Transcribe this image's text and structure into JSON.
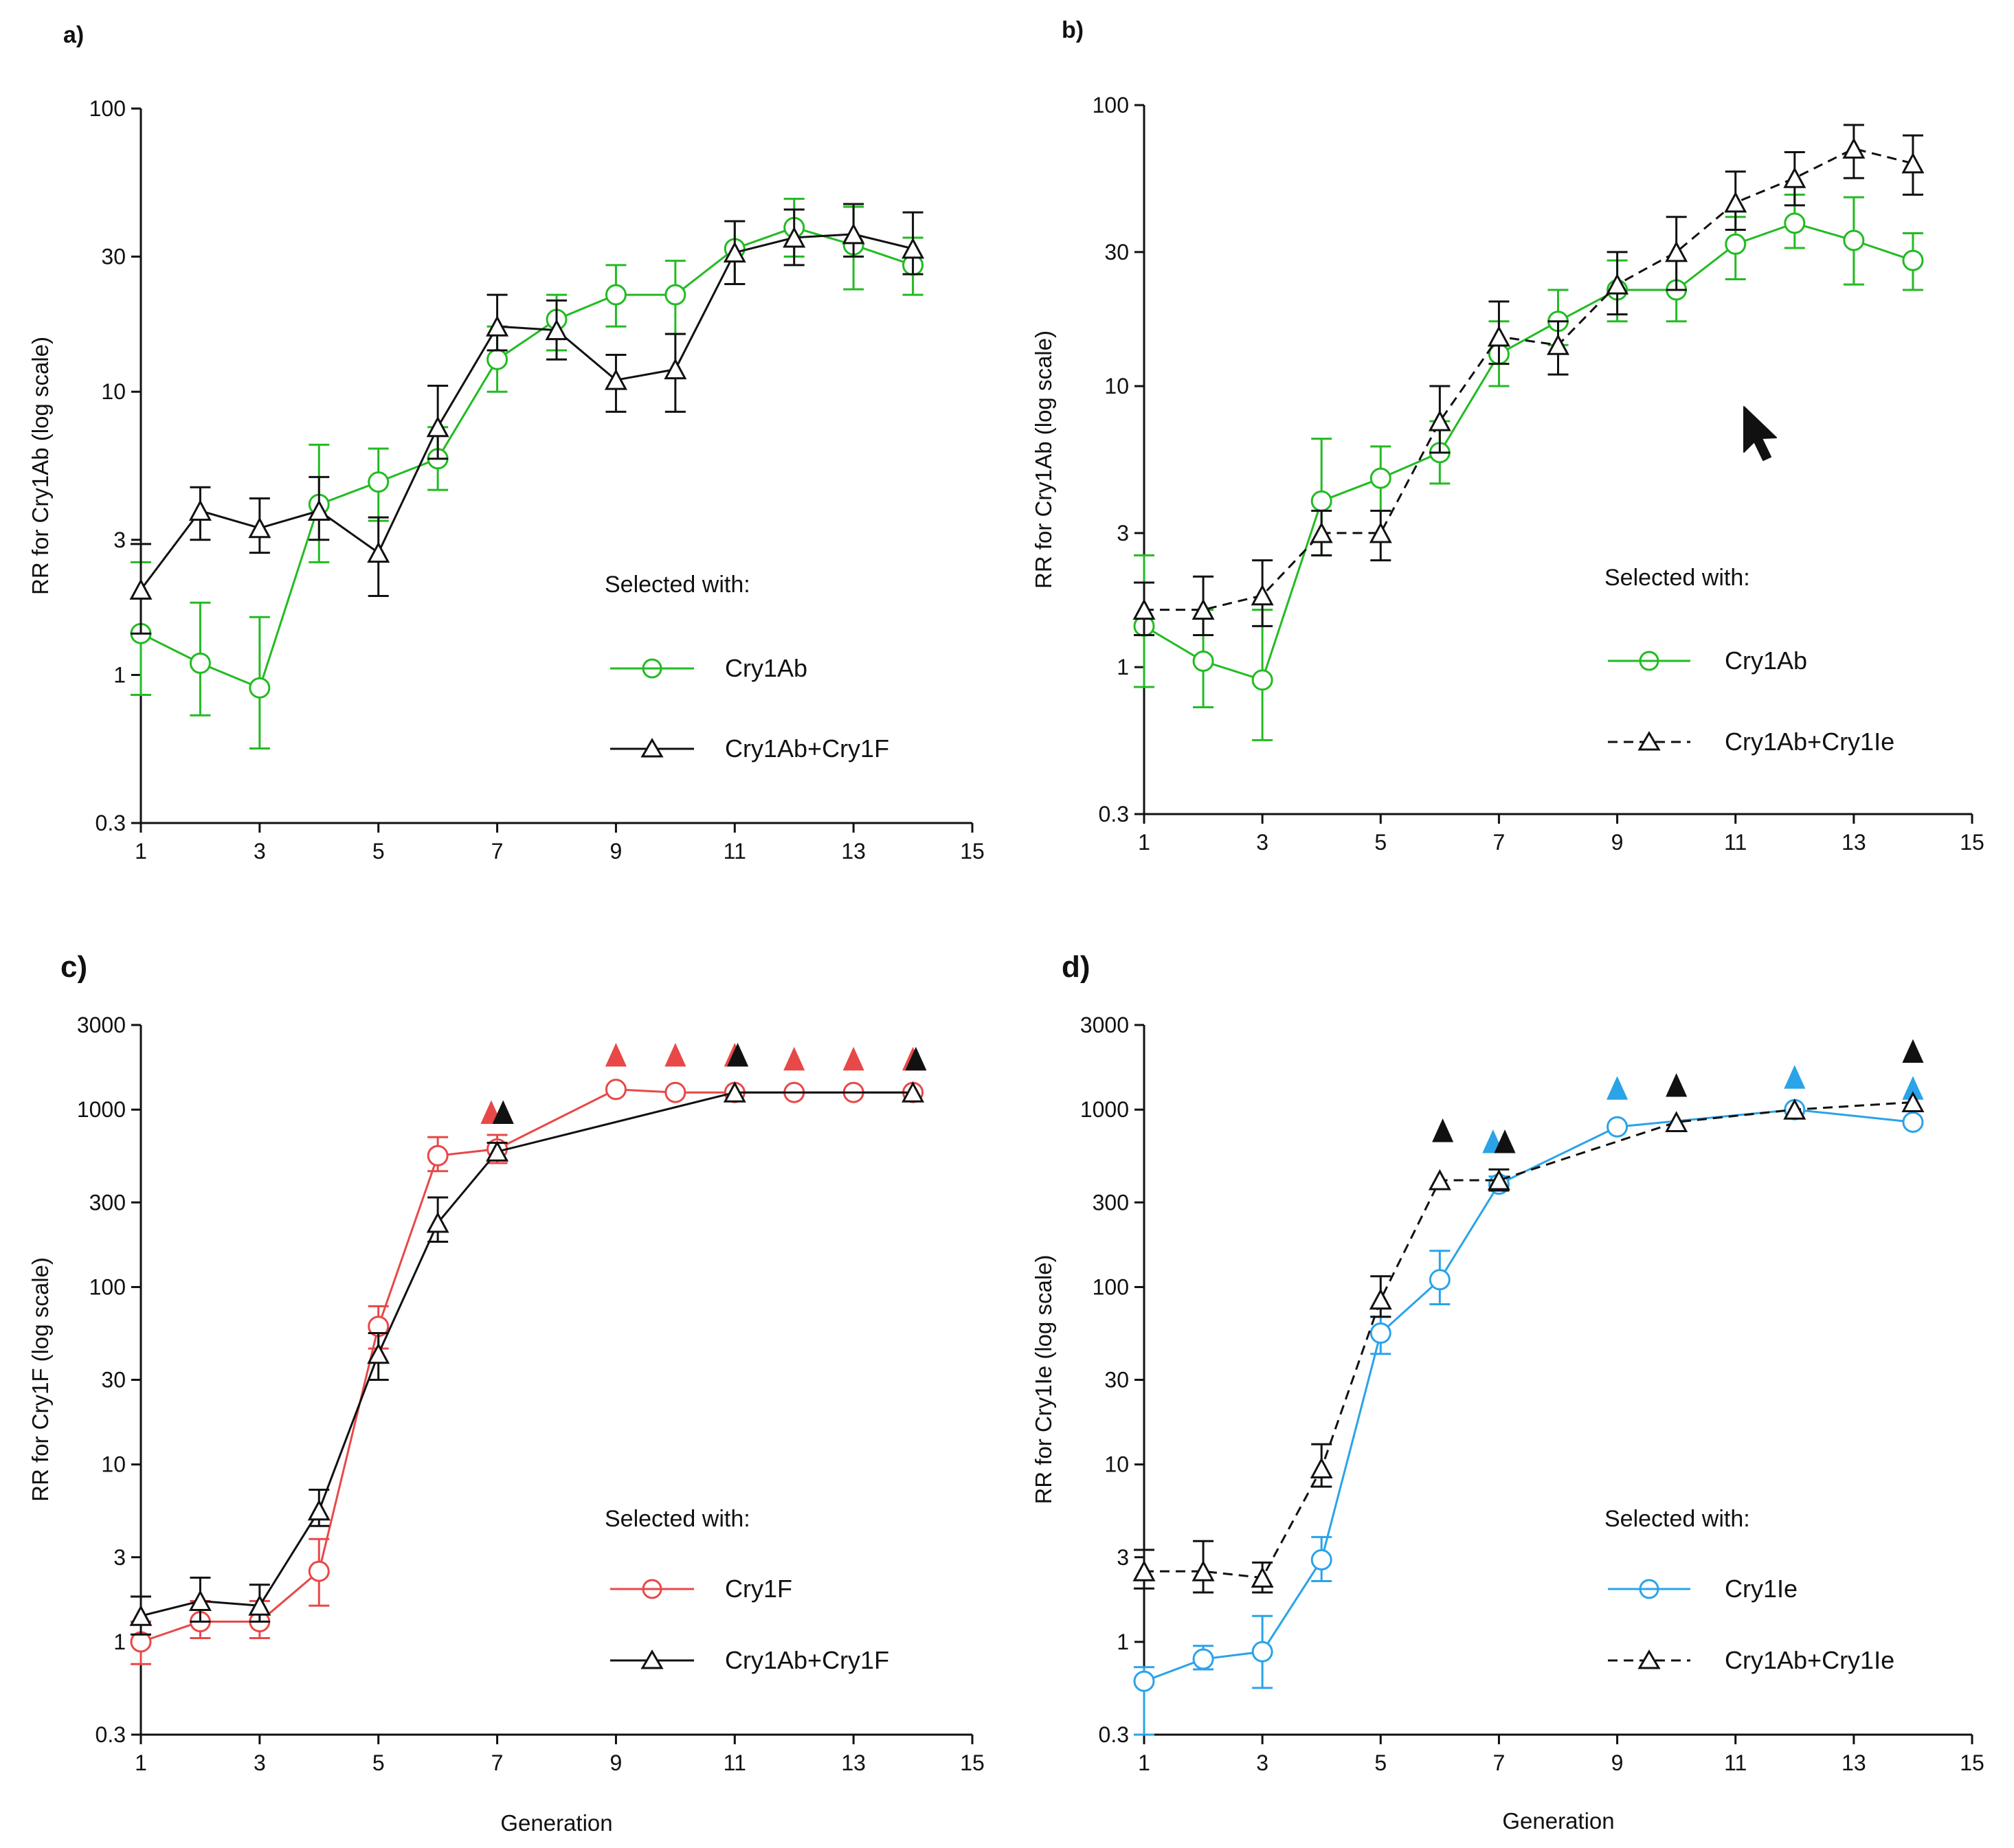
{
  "chart_data": [
    {
      "id": "a",
      "type": "line",
      "panel_label": "a)",
      "xlabel": "",
      "ylabel": "RR for Cry1Ab (log scale)",
      "yscale": "log",
      "ylim": [
        0.3,
        100
      ],
      "yticks": [
        0.3,
        1,
        3,
        10,
        30,
        100
      ],
      "ytick_labels": [
        "0.3",
        "1",
        "3",
        "10",
        "30",
        "100"
      ],
      "xlim": [
        1,
        15
      ],
      "xticks": [
        1,
        3,
        5,
        7,
        9,
        11,
        13,
        15
      ],
      "legend_title": "Selected with:",
      "series": [
        {
          "name": "Cry1Ab",
          "color": "#22bb22",
          "marker": "circle",
          "dash": false,
          "x": [
            1,
            2,
            3,
            4,
            5,
            6,
            7,
            8,
            9,
            10,
            11,
            12,
            13,
            14
          ],
          "y": [
            1.4,
            1.1,
            0.9,
            4.0,
            4.8,
            5.8,
            13,
            18,
            22,
            22,
            32,
            38,
            33,
            28
          ],
          "err_lo": [
            0.85,
            0.72,
            0.55,
            2.5,
            3.5,
            4.5,
            10,
            14,
            17,
            16,
            24,
            30,
            23,
            22
          ],
          "err_hi": [
            2.5,
            1.8,
            1.6,
            6.5,
            6.3,
            7.5,
            17,
            22,
            28,
            29,
            40,
            48,
            45,
            35
          ],
          "arrows": []
        },
        {
          "name": "Cry1Ab+Cry1F",
          "color": "#111111",
          "marker": "triangle",
          "dash": false,
          "x": [
            1,
            2,
            3,
            4,
            5,
            6,
            7,
            8,
            9,
            10,
            11,
            12,
            13,
            14
          ],
          "y": [
            2.0,
            3.8,
            3.3,
            3.8,
            2.7,
            7.5,
            17,
            16.5,
            11,
            12,
            31,
            35,
            36,
            32
          ],
          "err_lo": [
            1.4,
            3.0,
            2.7,
            3.0,
            1.9,
            5.8,
            14,
            13,
            8.5,
            8.5,
            24,
            28,
            30,
            26
          ],
          "err_hi": [
            2.9,
            4.6,
            4.2,
            5.0,
            3.6,
            10.5,
            22,
            21,
            13.5,
            16,
            40,
            44,
            46,
            43
          ],
          "arrows": []
        }
      ]
    },
    {
      "id": "b",
      "type": "line",
      "panel_label": "b)",
      "xlabel": "",
      "ylabel": "RR for Cry1Ab (log scale)",
      "yscale": "log",
      "ylim": [
        0.3,
        100
      ],
      "yticks": [
        0.3,
        1,
        3,
        10,
        30,
        100
      ],
      "ytick_labels": [
        "0.3",
        "1",
        "3",
        "10",
        "30",
        "100"
      ],
      "xlim": [
        1,
        15
      ],
      "xticks": [
        1,
        3,
        5,
        7,
        9,
        11,
        13,
        15
      ],
      "legend_title": "Selected with:",
      "series": [
        {
          "name": "Cry1Ab",
          "color": "#22bb22",
          "marker": "circle",
          "dash": false,
          "x": [
            1,
            2,
            3,
            4,
            5,
            6,
            7,
            8,
            9,
            10,
            11,
            12,
            13,
            14
          ],
          "y": [
            1.4,
            1.05,
            0.9,
            3.9,
            4.7,
            5.8,
            13,
            17,
            22,
            22,
            32,
            38,
            33,
            28
          ],
          "err_lo": [
            0.85,
            0.72,
            0.55,
            2.5,
            3.6,
            4.5,
            10,
            14,
            17,
            17,
            24,
            31,
            23,
            22
          ],
          "err_hi": [
            2.5,
            1.6,
            1.6,
            6.5,
            6.1,
            7.5,
            17,
            22,
            28,
            28,
            40,
            48,
            47,
            35
          ],
          "arrows": []
        },
        {
          "name": "Cry1Ab+Cry1Ie",
          "color": "#111111",
          "marker": "triangle",
          "dash": true,
          "x": [
            1,
            2,
            3,
            4,
            5,
            6,
            7,
            8,
            9,
            10,
            11,
            12,
            13,
            14
          ],
          "y": [
            1.6,
            1.6,
            1.8,
            3.0,
            3.0,
            7.5,
            15,
            14,
            23,
            30,
            45,
            55,
            70,
            62
          ],
          "err_lo": [
            1.3,
            1.3,
            1.4,
            2.5,
            2.4,
            5.8,
            12,
            11,
            18,
            22,
            36,
            44,
            55,
            48
          ],
          "err_hi": [
            2.0,
            2.1,
            2.4,
            3.6,
            3.6,
            10,
            20,
            17,
            30,
            40,
            58,
            68,
            85,
            78
          ],
          "arrows": []
        }
      ]
    },
    {
      "id": "c",
      "type": "line",
      "panel_label": "c)",
      "xlabel": "Generation",
      "ylabel": "RR for Cry1F (log scale)",
      "yscale": "log",
      "ylim": [
        0.3,
        3000
      ],
      "yticks": [
        0.3,
        1,
        3,
        10,
        30,
        100,
        300,
        1000,
        3000
      ],
      "ytick_labels": [
        "0.3",
        "1",
        "3",
        "10",
        "30",
        "100",
        "300",
        "1000",
        "3000"
      ],
      "xlim": [
        1,
        15
      ],
      "xticks": [
        1,
        3,
        5,
        7,
        9,
        11,
        13,
        15
      ],
      "legend_title": "Selected with:",
      "series": [
        {
          "name": "Cry1F",
          "color": "#e84848",
          "marker": "circle",
          "dash": false,
          "x": [
            1,
            2,
            3,
            4,
            5,
            6,
            7,
            9,
            10,
            11,
            12,
            13,
            14
          ],
          "y": [
            1.0,
            1.3,
            1.3,
            2.5,
            60,
            550,
            600,
            1300,
            1250,
            1250,
            1250,
            1250,
            1250
          ],
          "err_lo": [
            0.75,
            1.05,
            1.05,
            1.6,
            45,
            450,
            500,
            1300,
            1250,
            1250,
            1250,
            1250,
            1250
          ],
          "err_hi": [
            1.3,
            1.7,
            1.7,
            3.8,
            78,
            700,
            720,
            1300,
            1250,
            1250,
            1250,
            1250,
            1250
          ],
          "arrows": [
            {
              "x": 6.9,
              "y": 950
            },
            {
              "x": 9,
              "y": 2000
            },
            {
              "x": 10,
              "y": 2000
            },
            {
              "x": 11,
              "y": 2000
            },
            {
              "x": 12,
              "y": 1900
            },
            {
              "x": 13,
              "y": 1900
            },
            {
              "x": 14,
              "y": 1900
            }
          ]
        },
        {
          "name": "Cry1Ab+Cry1F",
          "color": "#111111",
          "marker": "triangle",
          "dash": false,
          "x": [
            1,
            2,
            3,
            4,
            5,
            6,
            7,
            11,
            14
          ],
          "y": [
            1.4,
            1.7,
            1.6,
            5.5,
            42,
            230,
            580,
            1250,
            1250
          ],
          "err_lo": [
            1.1,
            1.3,
            1.3,
            4.5,
            30,
            180,
            520,
            1250,
            1250
          ],
          "err_hi": [
            1.8,
            2.3,
            2.1,
            7.2,
            55,
            320,
            650,
            1250,
            1250
          ],
          "arrows": [
            {
              "x": 7.1,
              "y": 950
            },
            {
              "x": 11.05,
              "y": 2000
            },
            {
              "x": 14.05,
              "y": 1900
            }
          ]
        }
      ]
    },
    {
      "id": "d",
      "type": "line",
      "panel_label": "d)",
      "xlabel": "Generation",
      "ylabel": "RR for Cry1Ie (log scale)",
      "yscale": "log",
      "ylim": [
        0.3,
        3000
      ],
      "yticks": [
        0.3,
        1,
        3,
        10,
        30,
        100,
        300,
        1000,
        3000
      ],
      "ytick_labels": [
        "0.3",
        "1",
        "3",
        "10",
        "30",
        "100",
        "300",
        "1000",
        "3000"
      ],
      "xlim": [
        1,
        15
      ],
      "xticks": [
        1,
        3,
        5,
        7,
        9,
        11,
        13,
        15
      ],
      "legend_title": "Selected with:",
      "series": [
        {
          "name": "Cry1Ie",
          "color": "#2aa3e8",
          "marker": "circle",
          "dash": false,
          "x": [
            1,
            2,
            3,
            4,
            5,
            6,
            7,
            9,
            12,
            14
          ],
          "y": [
            0.6,
            0.8,
            0.88,
            2.9,
            55,
            110,
            380,
            800,
            1000,
            850
          ],
          "err_lo": [
            0.3,
            0.7,
            0.55,
            2.2,
            42,
            80,
            350,
            800,
            1000,
            850
          ],
          "err_hi": [
            0.72,
            0.95,
            1.4,
            3.9,
            68,
            160,
            420,
            800,
            1000,
            850
          ],
          "arrows": [
            {
              "x": 6.9,
              "y": 650
            },
            {
              "x": 9,
              "y": 1300
            },
            {
              "x": 12,
              "y": 1500
            },
            {
              "x": 14,
              "y": 1300
            }
          ]
        },
        {
          "name": "Cry1Ab+Cry1Ie",
          "color": "#111111",
          "marker": "triangle",
          "dash": true,
          "x": [
            1,
            2,
            3,
            4,
            5,
            6,
            7,
            10,
            12,
            14
          ],
          "y": [
            2.5,
            2.5,
            2.3,
            9.5,
            85,
            400,
            400,
            850,
            1000,
            1100
          ],
          "err_lo": [
            2.0,
            1.9,
            1.9,
            7.5,
            68,
            400,
            350,
            850,
            1000,
            1100
          ],
          "err_hi": [
            3.3,
            3.7,
            2.8,
            13,
            115,
            400,
            460,
            850,
            1000,
            1100
          ],
          "arrows": [
            {
              "x": 6.05,
              "y": 750
            },
            {
              "x": 7.1,
              "y": 650
            },
            {
              "x": 10,
              "y": 1350
            },
            {
              "x": 14,
              "y": 2100
            }
          ]
        }
      ]
    }
  ],
  "decorations": {
    "cursor": "arrow-cursor-icon"
  }
}
